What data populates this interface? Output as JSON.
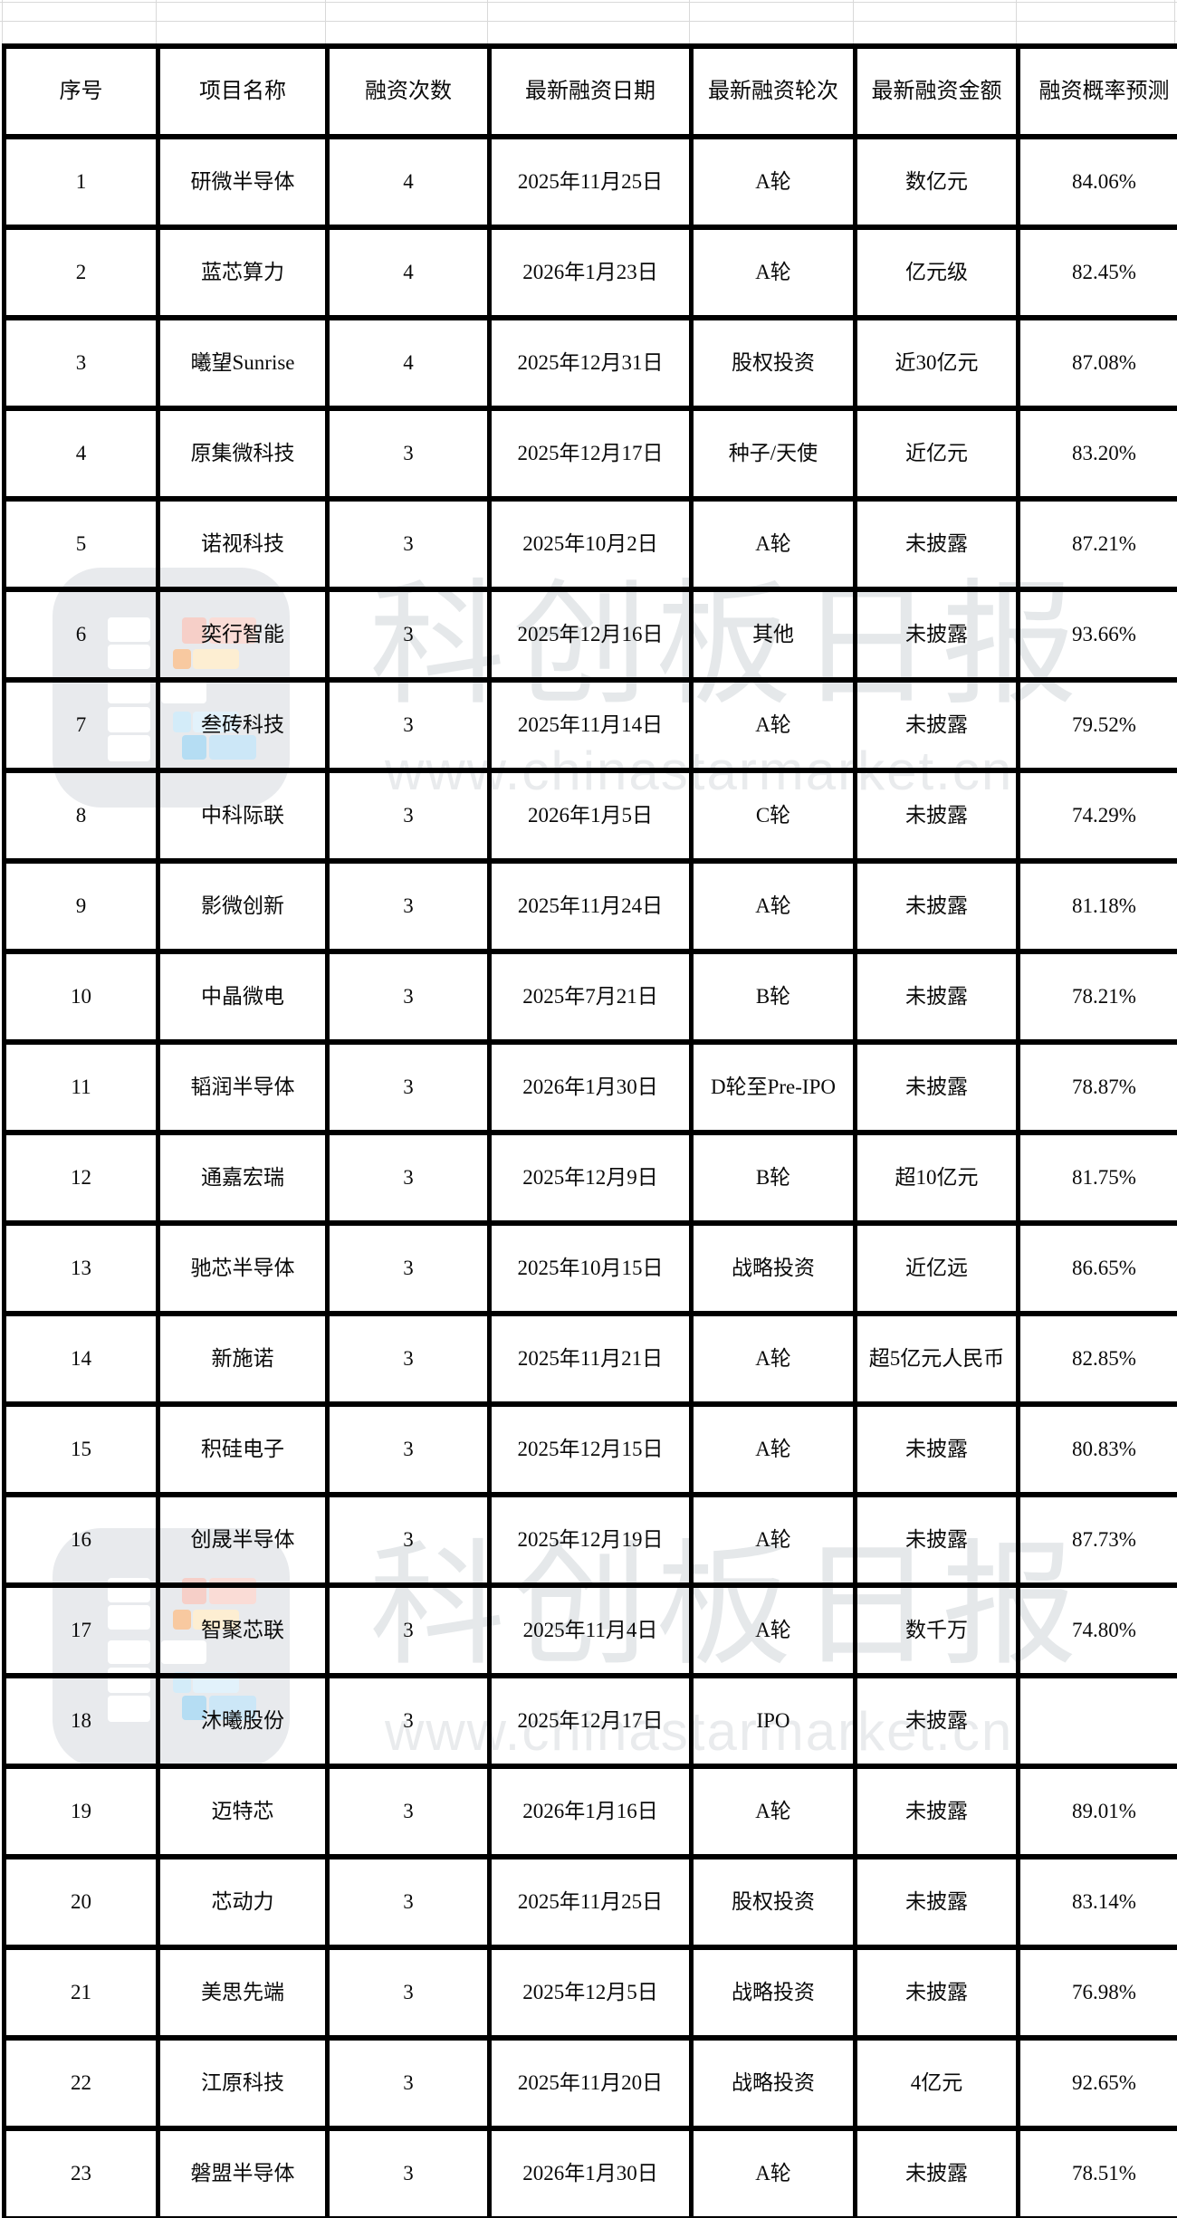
{
  "table": {
    "headers": [
      "序号",
      "项目名称",
      "融资次数",
      "最新融资日期",
      "最新融资轮次",
      "最新融资金额",
      "融资概率预测"
    ],
    "column_keys": [
      "index",
      "project-name",
      "financing-count",
      "latest-financing-date",
      "latest-financing-round",
      "latest-financing-amount",
      "financing-probability"
    ],
    "rows": [
      [
        "1",
        "研微半导体",
        "4",
        "2025年11月25日",
        "A轮",
        "数亿元",
        "84.06%"
      ],
      [
        "2",
        "蓝芯算力",
        "4",
        "2026年1月23日",
        "A轮",
        "亿元级",
        "82.45%"
      ],
      [
        "3",
        "曦望Sunrise",
        "4",
        "2025年12月31日",
        "股权投资",
        "近30亿元",
        "87.08%"
      ],
      [
        "4",
        "原集微科技",
        "3",
        "2025年12月17日",
        "种子/天使",
        "近亿元",
        "83.20%"
      ],
      [
        "5",
        "诺视科技",
        "3",
        "2025年10月2日",
        "A轮",
        "未披露",
        "87.21%"
      ],
      [
        "6",
        "奕行智能",
        "3",
        "2025年12月16日",
        "其他",
        "未披露",
        "93.66%"
      ],
      [
        "7",
        "叁砖科技",
        "3",
        "2025年11月14日",
        "A轮",
        "未披露",
        "79.52%"
      ],
      [
        "8",
        "中科际联",
        "3",
        "2026年1月5日",
        "C轮",
        "未披露",
        "74.29%"
      ],
      [
        "9",
        "影微创新",
        "3",
        "2025年11月24日",
        "A轮",
        "未披露",
        "81.18%"
      ],
      [
        "10",
        "中晶微电",
        "3",
        "2025年7月21日",
        "B轮",
        "未披露",
        "78.21%"
      ],
      [
        "11",
        "韬润半导体",
        "3",
        "2026年1月30日",
        "D轮至Pre-IPO",
        "未披露",
        "78.87%"
      ],
      [
        "12",
        "通嘉宏瑞",
        "3",
        "2025年12月9日",
        "B轮",
        "超10亿元",
        "81.75%"
      ],
      [
        "13",
        "驰芯半导体",
        "3",
        "2025年10月15日",
        "战略投资",
        "近亿远",
        "86.65%"
      ],
      [
        "14",
        "新施诺",
        "3",
        "2025年11月21日",
        "A轮",
        "超5亿元人民币",
        "82.85%"
      ],
      [
        "15",
        "积硅电子",
        "3",
        "2025年12月15日",
        "A轮",
        "未披露",
        "80.83%"
      ],
      [
        "16",
        "创晟半导体",
        "3",
        "2025年12月19日",
        "A轮",
        "未披露",
        "87.73%"
      ],
      [
        "17",
        "智聚芯联",
        "3",
        "2025年11月4日",
        "A轮",
        "数千万",
        "74.80%"
      ],
      [
        "18",
        "沐曦股份",
        "3",
        "2025年12月17日",
        "IPO",
        "未披露",
        ""
      ],
      [
        "19",
        "迈特芯",
        "3",
        "2026年1月16日",
        "A轮",
        "未披露",
        "89.01%"
      ],
      [
        "20",
        "芯动力",
        "3",
        "2025年11月25日",
        "股权投资",
        "未披露",
        "83.14%"
      ],
      [
        "21",
        "美思先端",
        "3",
        "2025年12月5日",
        "战略投资",
        "未披露",
        "76.98%"
      ],
      [
        "22",
        "江原科技",
        "3",
        "2025年11月20日",
        "战略投资",
        "4亿元",
        "92.65%"
      ],
      [
        "23",
        "磐盟半导体",
        "3",
        "2026年1月30日",
        "A轮",
        "未披露",
        "78.51%"
      ]
    ]
  },
  "watermark": {
    "brand_text": "科创板日报",
    "url_text": "www.chinastarmarket.cn"
  },
  "colors": {
    "background": "#ffffff",
    "border": "#000000",
    "grid_line": "#d9d9d9",
    "watermark_text": "#e5e8ea",
    "watermark_url": "#e9ebed",
    "logo_bg": "#e8eaed",
    "logo_red": "#f6cfc8",
    "logo_pink": "#fadcd6",
    "logo_orange": "#f8c9a0",
    "logo_cream": "#fdeed2",
    "logo_lightblue": "#d3ecf9",
    "logo_lightblue2": "#e2f2fb",
    "logo_blue": "#b5ddf3",
    "logo_blue2": "#cce7f7"
  }
}
